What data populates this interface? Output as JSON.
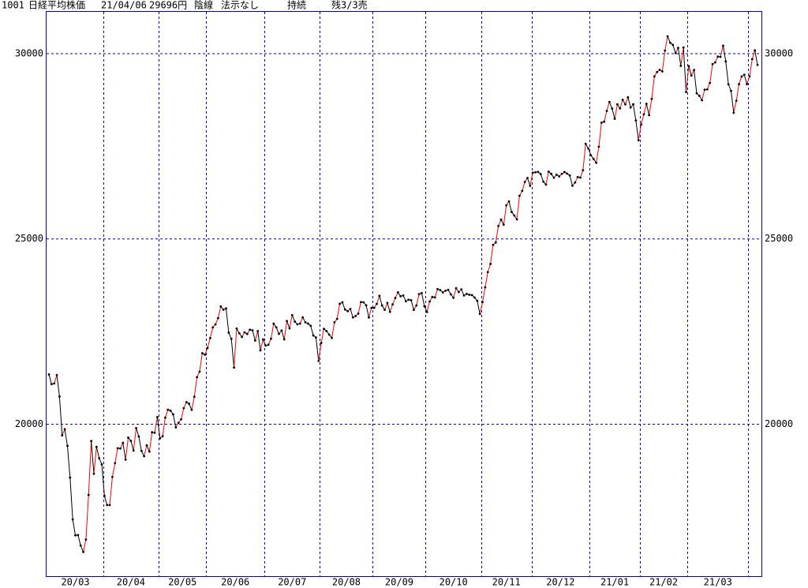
{
  "header": {
    "code": "1001",
    "name": "日経平均株価",
    "date": "21/04/06",
    "price": "29696円",
    "candle": "陰線",
    "signal": "法示なし",
    "status": "持続",
    "position": "残3/3売"
  },
  "chart_data": {
    "type": "line",
    "categories": [
      "20/03",
      "20/03",
      "20/03",
      "20/03",
      "20/03",
      "20/03",
      "20/03",
      "20/03",
      "20/03",
      "20/03",
      "20/03",
      "20/03",
      "20/03",
      "20/03",
      "20/03",
      "20/03",
      "20/03",
      "20/03",
      "20/03",
      "20/03",
      "20/03",
      "20/04",
      "20/04",
      "20/04",
      "20/04",
      "20/04",
      "20/04",
      "20/04",
      "20/04",
      "20/04",
      "20/04",
      "20/04",
      "20/04",
      "20/04",
      "20/04",
      "20/04",
      "20/04",
      "20/04",
      "20/04",
      "20/04",
      "20/04",
      "20/04",
      "20/05",
      "20/05",
      "20/05",
      "20/05",
      "20/05",
      "20/05",
      "20/05",
      "20/05",
      "20/05",
      "20/05",
      "20/05",
      "20/05",
      "20/05",
      "20/05",
      "20/05",
      "20/05",
      "20/05",
      "20/05",
      "20/06",
      "20/06",
      "20/06",
      "20/06",
      "20/06",
      "20/06",
      "20/06",
      "20/06",
      "20/06",
      "20/06",
      "20/06",
      "20/06",
      "20/06",
      "20/06",
      "20/06",
      "20/06",
      "20/06",
      "20/06",
      "20/06",
      "20/06",
      "20/06",
      "20/06",
      "20/07",
      "20/07",
      "20/07",
      "20/07",
      "20/07",
      "20/07",
      "20/07",
      "20/07",
      "20/07",
      "20/07",
      "20/07",
      "20/07",
      "20/07",
      "20/07",
      "20/07",
      "20/07",
      "20/07",
      "20/07",
      "20/07",
      "20/07",
      "20/07",
      "20/08",
      "20/08",
      "20/08",
      "20/08",
      "20/08",
      "20/08",
      "20/08",
      "20/08",
      "20/08",
      "20/08",
      "20/08",
      "20/08",
      "20/08",
      "20/08",
      "20/08",
      "20/08",
      "20/08",
      "20/08",
      "20/08",
      "20/08",
      "20/09",
      "20/09",
      "20/09",
      "20/09",
      "20/09",
      "20/09",
      "20/09",
      "20/09",
      "20/09",
      "20/09",
      "20/09",
      "20/09",
      "20/09",
      "20/09",
      "20/09",
      "20/09",
      "20/09",
      "20/09",
      "20/09",
      "20/09",
      "20/10",
      "20/10",
      "20/10",
      "20/10",
      "20/10",
      "20/10",
      "20/10",
      "20/10",
      "20/10",
      "20/10",
      "20/10",
      "20/10",
      "20/10",
      "20/10",
      "20/10",
      "20/10",
      "20/10",
      "20/10",
      "20/10",
      "20/10",
      "20/10",
      "20/11",
      "20/11",
      "20/11",
      "20/11",
      "20/11",
      "20/11",
      "20/11",
      "20/11",
      "20/11",
      "20/11",
      "20/11",
      "20/11",
      "20/11",
      "20/11",
      "20/11",
      "20/11",
      "20/11",
      "20/11",
      "20/11",
      "20/12",
      "20/12",
      "20/12",
      "20/12",
      "20/12",
      "20/12",
      "20/12",
      "20/12",
      "20/12",
      "20/12",
      "20/12",
      "20/12",
      "20/12",
      "20/12",
      "20/12",
      "20/12",
      "20/12",
      "20/12",
      "20/12",
      "20/12",
      "20/12",
      "20/12",
      "21/01",
      "21/01",
      "21/01",
      "21/01",
      "21/01",
      "21/01",
      "21/01",
      "21/01",
      "21/01",
      "21/01",
      "21/01",
      "21/01",
      "21/01",
      "21/01",
      "21/01",
      "21/01",
      "21/01",
      "21/01",
      "21/01",
      "21/02",
      "21/02",
      "21/02",
      "21/02",
      "21/02",
      "21/02",
      "21/02",
      "21/02",
      "21/02",
      "21/02",
      "21/02",
      "21/02",
      "21/02",
      "21/02",
      "21/02",
      "21/02",
      "21/02",
      "21/02",
      "21/03",
      "21/03",
      "21/03",
      "21/03",
      "21/03",
      "21/03",
      "21/03",
      "21/03",
      "21/03",
      "21/03",
      "21/03",
      "21/03",
      "21/03",
      "21/03",
      "21/03",
      "21/03",
      "21/03",
      "21/03",
      "21/03",
      "21/03",
      "21/03",
      "21/03",
      "21/03",
      null,
      null,
      null,
      null
    ],
    "values": [
      21344,
      21082,
      21100,
      21329,
      20749,
      19698,
      19867,
      19416,
      18559,
      17431,
      17002,
      17011,
      16726,
      16552,
      16887,
      18092,
      19546,
      18664,
      19389,
      19084,
      18917,
      18065,
      17819,
      17820,
      18576,
      18950,
      19353,
      19345,
      19498,
      19043,
      19639,
      19550,
      19290,
      19897,
      19669,
      19280,
      19137,
      19429,
      19262,
      19783,
      19771,
      20193,
      19619,
      19674,
      20179,
      20390,
      20366,
      20267,
      19914,
      20037,
      20133,
      20433,
      20595,
      20552,
      20388,
      20741,
      21271,
      21419,
      21916,
      21877,
      22062,
      22325,
      22613,
      22695,
      22863,
      23178,
      23091,
      23124,
      22472,
      22305,
      21530,
      22582,
      22455,
      22355,
      22478,
      22437,
      22549,
      22534,
      22259,
      22512,
      21995,
      22288,
      22122,
      22145,
      22306,
      22714,
      22614,
      22438,
      22529,
      22291,
      22784,
      22587,
      22945,
      22770,
      22696,
      22717,
      22884,
      22751,
      22715,
      22657,
      22397,
      22339,
      21710,
      22195,
      22573,
      22514,
      22418,
      22329,
      22750,
      22843,
      23249,
      23289,
      23096,
      23051,
      23110,
      22880,
      22920,
      22985,
      23296,
      23290,
      23208,
      22882,
      23139,
      23138,
      23247,
      23465,
      23205,
      23089,
      23274,
      23032,
      23235,
      23406,
      23559,
      23454,
      23475,
      23319,
      23360,
      23346,
      23087,
      23204,
      23511,
      23539,
      23185,
      23029,
      23312,
      23433,
      23422,
      23647,
      23619,
      23558,
      23601,
      23626,
      23507,
      23410,
      23671,
      23567,
      23639,
      23474,
      23516,
      23494,
      23485,
      23418,
      23331,
      22977,
      23295,
      23695,
      24105,
      24325,
      24839,
      24905,
      25349,
      25520,
      25385,
      25906,
      26014,
      25728,
      25634,
      25527,
      26165,
      26296,
      26537,
      26644,
      26433,
      26787,
      26800,
      26809,
      26751,
      26547,
      26467,
      26817,
      26756,
      26652,
      26732,
      26687,
      26757,
      26806,
      26763,
      26714,
      26436,
      26524,
      26668,
      26656,
      26854,
      27568,
      27444,
      27258,
      27158,
      27055,
      27490,
      28139,
      28164,
      28456,
      28698,
      28519,
      28242,
      28633,
      28523,
      28756,
      28631,
      28822,
      28546,
      28635,
      28197,
      27663,
      28091,
      28362,
      28646,
      28341,
      28779,
      29388,
      29505,
      29562,
      29520,
      30084,
      30467,
      30292,
      30236,
      30017,
      30156,
      29671,
      30168,
      28966,
      29663,
      29408,
      29559,
      28930,
      28864,
      28743,
      29027,
      29036,
      29211,
      29717,
      29766,
      29921,
      29914,
      30216,
      29792,
      29174,
      28995,
      28405,
      28729,
      29176,
      29384,
      29432,
      29178,
      29388,
      29854,
      30089,
      29696
    ],
    "up_color": "#ff0000",
    "down_color": "#000000",
    "point_color": "#000000",
    "grid_color": "#0000c0",
    "ylim": [
      15900,
      31150
    ],
    "yticks": [
      20000,
      25000,
      30000
    ],
    "grid": true
  }
}
